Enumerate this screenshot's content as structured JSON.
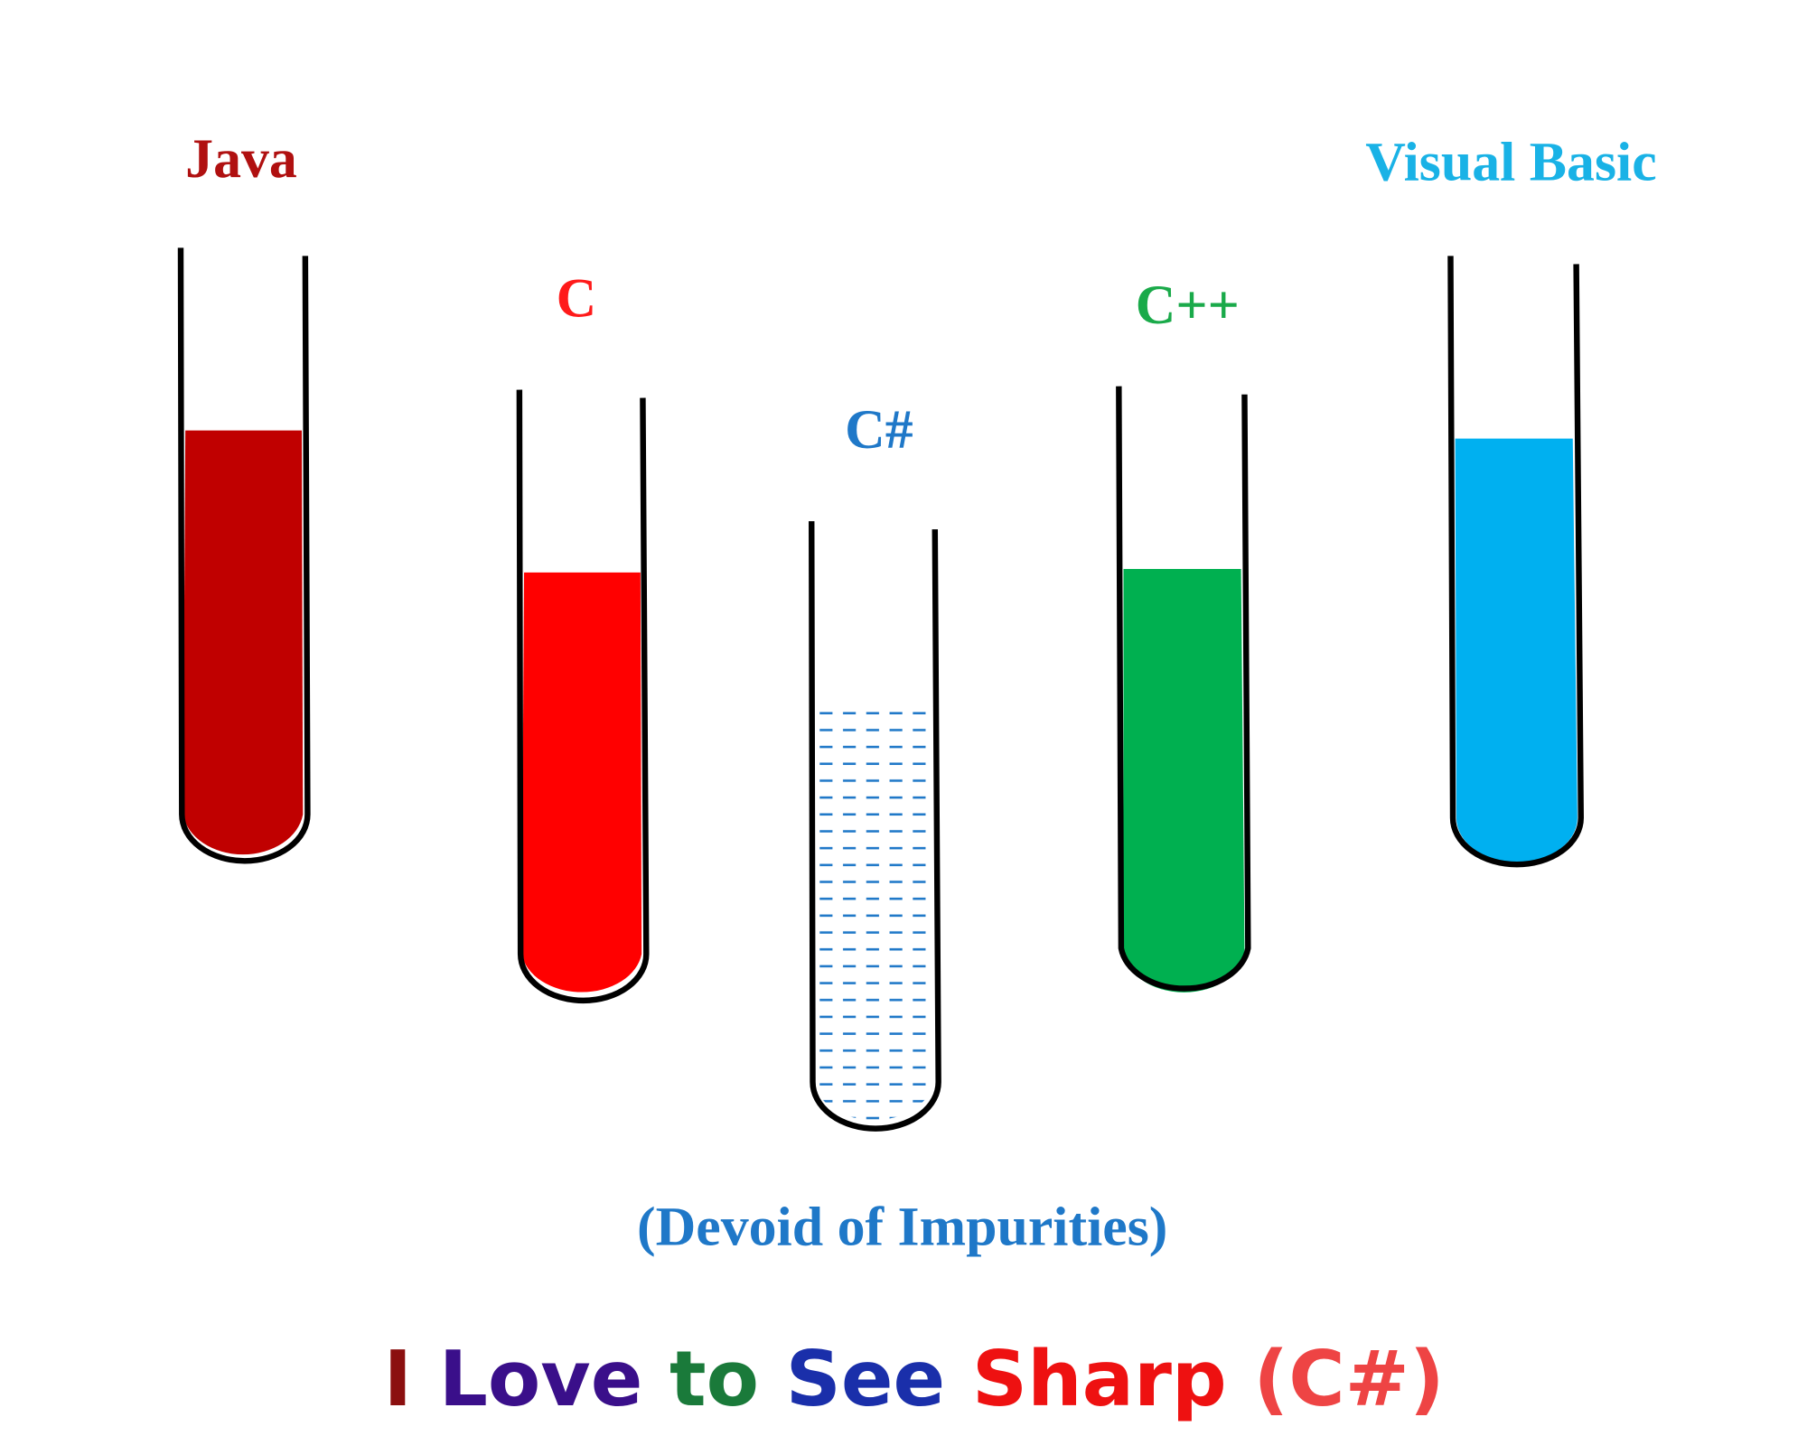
{
  "tubes": [
    {
      "label": "Java"
    },
    {
      "label": "C"
    },
    {
      "label": "C#"
    },
    {
      "label": "C++"
    },
    {
      "label": "Visual Basic"
    }
  ],
  "note": "(Devoid of Impurities)",
  "title": [
    "I",
    "Love",
    "to",
    "See",
    "Sharp",
    "(C#)"
  ]
}
